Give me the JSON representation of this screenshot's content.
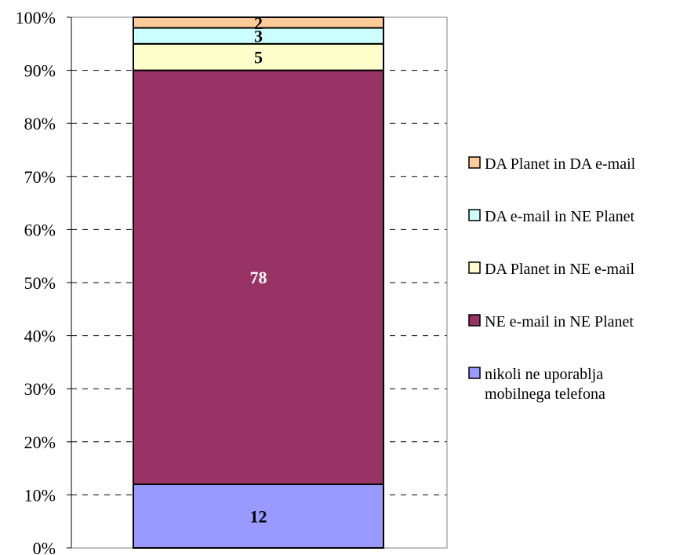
{
  "chart_data": {
    "type": "bar",
    "stacked": true,
    "percent_axis": true,
    "categories": [
      ""
    ],
    "ylim": [
      0,
      100
    ],
    "y_ticks": [
      "0%",
      "10%",
      "20%",
      "30%",
      "40%",
      "50%",
      "60%",
      "70%",
      "80%",
      "90%",
      "100%"
    ],
    "grid": "dashed horizontal",
    "legend_position": "right",
    "series": [
      {
        "name": "nikoli ne uporablja mobilnega telefona",
        "legend_lines": [
          "nikoli ne uporablja",
          "mobilnega telefona"
        ],
        "value": 12,
        "label": "12",
        "color": "#9999FF",
        "label_color": "#000000"
      },
      {
        "name": "NE e-mail in NE Planet",
        "legend_lines": [
          "NE e-mail in NE Planet"
        ],
        "value": 78,
        "label": "78",
        "color": "#993366",
        "label_color": "#FFFFFF"
      },
      {
        "name": "DA Planet in NE e-mail",
        "legend_lines": [
          "DA Planet in NE e-mail"
        ],
        "value": 5,
        "label": "5",
        "color": "#FFFFCC",
        "label_color": "#000000"
      },
      {
        "name": "DA e-mail in NE Planet",
        "legend_lines": [
          "DA e-mail in NE Planet"
        ],
        "value": 3,
        "label": "3",
        "color": "#CCFFFF",
        "label_color": "#000000"
      },
      {
        "name": "DA Planet in DA e-mail",
        "legend_lines": [
          "DA Planet in DA e-mail"
        ],
        "value": 2,
        "label": "2",
        "color": "#FFCC99",
        "label_color": "#000000"
      }
    ]
  }
}
